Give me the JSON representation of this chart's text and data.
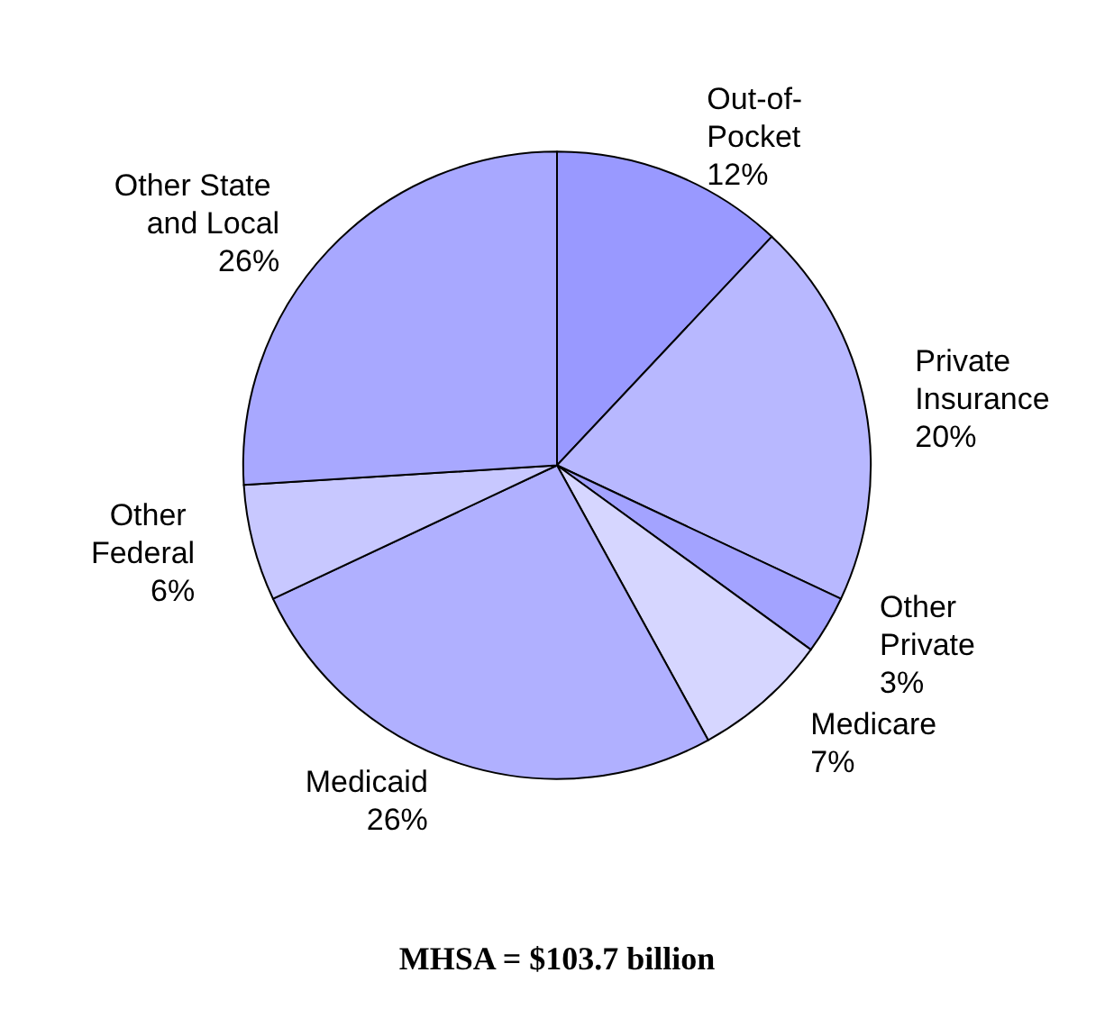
{
  "chart_data": {
    "type": "pie",
    "title": "MHSA = $103.7 billion",
    "categories": [
      "Out-of-Pocket",
      "Private Insurance",
      "Other Private",
      "Medicare",
      "Medicaid",
      "Other Federal",
      "Other State and Local"
    ],
    "values": [
      12,
      20,
      3,
      7,
      26,
      6,
      26
    ],
    "colors": [
      "#9999ff",
      "#b8b8ff",
      "#a3a3ff",
      "#d6d6ff",
      "#b0b0ff",
      "#c8c8ff",
      "#a8a8ff"
    ],
    "value_labels": [
      "12%",
      "20%",
      "3%",
      "7%",
      "26%",
      "6%",
      "26%"
    ],
    "legend": false
  }
}
